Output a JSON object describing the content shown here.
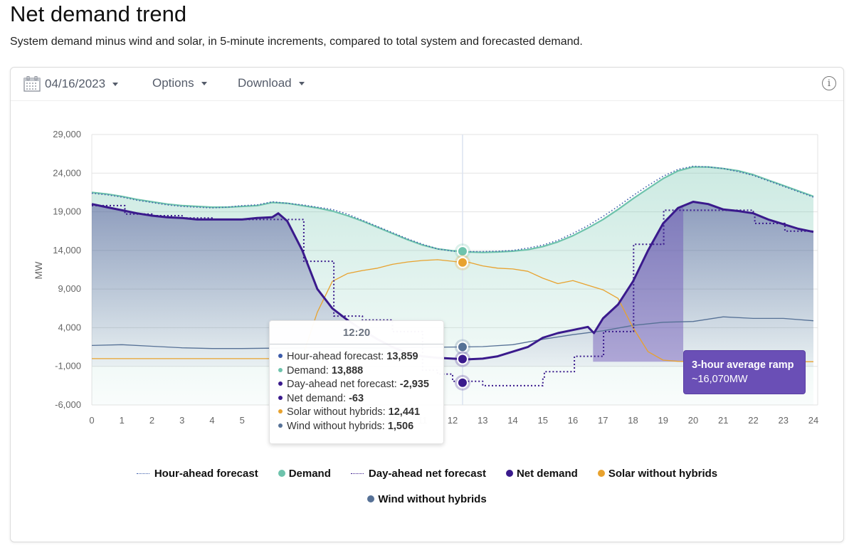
{
  "header": {
    "title": "Net demand trend",
    "subtitle": "System demand minus wind and solar, in 5-minute increments, compared to total system and forecasted demand."
  },
  "toolbar": {
    "date_label": "04/16/2023",
    "options_label": "Options",
    "download_label": "Download",
    "info_icon": "i"
  },
  "tooltip": {
    "time": "12:20",
    "rows": [
      {
        "label": "Hour-ahead forecast: ",
        "value": "13,859",
        "color": "#3b5ba9"
      },
      {
        "label": "Demand: ",
        "value": "13,888",
        "color": "#6ec3ac"
      },
      {
        "label": "Day-ahead net forecast: ",
        "value": "-2,935",
        "color": "#3a1a8c"
      },
      {
        "label": "Net demand: ",
        "value": "-63",
        "color": "#3a1a8c"
      },
      {
        "label": "Solar without hybrids: ",
        "value": "12,441",
        "color": "#e8a22e"
      },
      {
        "label": "Wind without hybrids: ",
        "value": "1,506",
        "color": "#567196"
      }
    ]
  },
  "ramp_annotation": {
    "title": "3-hour average ramp",
    "value": "~16,070MW",
    "start_hour": 16.67,
    "end_hour": 19.67
  },
  "legend": [
    {
      "label": "Hour-ahead forecast",
      "marker": "dotted-line",
      "color": "#3b5ba9"
    },
    {
      "label": "Demand",
      "marker": "dot",
      "color": "#6ec3ac"
    },
    {
      "label": "Day-ahead net forecast",
      "marker": "dotted-line",
      "color": "#3a1a8c"
    },
    {
      "label": "Net demand",
      "marker": "dot",
      "color": "#3a1a8c"
    },
    {
      "label": "Solar without hybrids",
      "marker": "dot",
      "color": "#e8a22e"
    },
    {
      "label": "Wind without hybrids",
      "marker": "dot",
      "color": "#567196"
    }
  ],
  "chart_data": {
    "type": "line",
    "title": "Net demand trend",
    "xlabel": "",
    "ylabel": "MW",
    "xlim": [
      0,
      24
    ],
    "ylim": [
      -6000,
      29000
    ],
    "x_ticks": [
      "0",
      "1",
      "2",
      "3",
      "4",
      "5",
      "6",
      "7",
      "8",
      "9",
      "10",
      "11",
      "12",
      "13",
      "14",
      "15",
      "16",
      "17",
      "18",
      "19",
      "20",
      "21",
      "22",
      "23",
      "24"
    ],
    "y_ticks": [
      "29,000",
      "24,000",
      "19,000",
      "14,000",
      "9,000",
      "4,000",
      "-1,000",
      "-6,000"
    ],
    "y_tick_values": [
      29000,
      24000,
      19000,
      14000,
      9000,
      4000,
      -1000,
      -6000
    ],
    "grid": true,
    "legend_position": "bottom",
    "crosshair_hour": 12.33,
    "series": [
      {
        "name": "Demand",
        "color": "#6ec3ac",
        "x": [
          0,
          0.5,
          1,
          1.5,
          2,
          2.5,
          3,
          3.5,
          4,
          4.5,
          5,
          5.5,
          6,
          6.5,
          7,
          7.5,
          8,
          8.5,
          9,
          9.5,
          10,
          10.5,
          11,
          11.5,
          12,
          12.33,
          12.5,
          13,
          13.5,
          14,
          14.5,
          15,
          15.5,
          16,
          16.5,
          17,
          17.5,
          18,
          18.5,
          19,
          19.5,
          20,
          20.5,
          21,
          21.5,
          22,
          22.5,
          23,
          23.5,
          24
        ],
        "y": [
          21500,
          21300,
          21000,
          20600,
          20300,
          20000,
          19800,
          19700,
          19600,
          19600,
          19700,
          19800,
          20200,
          20100,
          19800,
          19500,
          19100,
          18500,
          17800,
          17000,
          16200,
          15400,
          14700,
          14200,
          13950,
          13888,
          13800,
          13750,
          13800,
          13900,
          14100,
          14500,
          15100,
          15900,
          16900,
          18000,
          19300,
          20700,
          22000,
          23300,
          24300,
          24800,
          24800,
          24600,
          24300,
          23800,
          23100,
          22400,
          21700,
          21000
        ]
      },
      {
        "name": "Hour-ahead forecast",
        "color": "#3b5ba9",
        "x": [
          0,
          0.5,
          1,
          1.5,
          2,
          2.5,
          3,
          3.5,
          4,
          4.5,
          5,
          5.5,
          6,
          6.5,
          7,
          7.5,
          8,
          8.5,
          9,
          9.5,
          10,
          10.5,
          11,
          11.5,
          12,
          12.33,
          12.5,
          13,
          13.5,
          14,
          14.5,
          15,
          15.5,
          16,
          16.5,
          17,
          17.5,
          18,
          18.5,
          19,
          19.5,
          20,
          20.5,
          21,
          21.5,
          22,
          22.5,
          23,
          23.5,
          24
        ],
        "y": [
          21400,
          21200,
          20900,
          20500,
          20200,
          19900,
          19700,
          19600,
          19500,
          19600,
          19800,
          19900,
          20300,
          20100,
          19900,
          19600,
          19300,
          18700,
          17900,
          17100,
          16300,
          15500,
          14800,
          14200,
          13900,
          13859,
          13850,
          13850,
          13900,
          14000,
          14300,
          14700,
          15300,
          16200,
          17200,
          18400,
          19700,
          21100,
          22400,
          23600,
          24500,
          24900,
          24800,
          24600,
          24200,
          23700,
          23000,
          22300,
          21600,
          20900
        ]
      },
      {
        "name": "Net demand",
        "color": "#3a1a8c",
        "x": [
          0,
          0.5,
          1,
          1.5,
          2,
          2.5,
          3,
          3.5,
          4,
          4.5,
          5,
          5.5,
          6,
          6.2,
          6.5,
          7,
          7.5,
          8,
          8.5,
          9,
          9.5,
          10,
          10.5,
          11,
          11.5,
          12,
          12.33,
          12.5,
          13,
          13.5,
          14,
          14.5,
          15,
          15.5,
          16,
          16.5,
          16.7,
          17,
          17.5,
          18,
          18.5,
          19,
          19.5,
          20,
          20.5,
          21,
          21.5,
          22,
          22.5,
          23,
          23.5,
          24
        ],
        "y": [
          20000,
          19600,
          19200,
          18800,
          18500,
          18300,
          18200,
          18000,
          18000,
          18000,
          18000,
          18200,
          18300,
          18800,
          17800,
          14000,
          9000,
          6500,
          5000,
          3700,
          2500,
          1500,
          700,
          300,
          100,
          0,
          -63,
          -100,
          0,
          300,
          900,
          1500,
          2700,
          3300,
          3700,
          4100,
          3300,
          5200,
          7000,
          10000,
          14000,
          17500,
          19500,
          20300,
          20000,
          19300,
          19100,
          18800,
          18000,
          17400,
          16800,
          16400
        ]
      },
      {
        "name": "Day-ahead net forecast",
        "color": "#3a1a8c",
        "step": true,
        "x": [
          0,
          1,
          1.1,
          2,
          3,
          4,
          5,
          6,
          7,
          7.05,
          8,
          8.05,
          9,
          10,
          11,
          11.5,
          12,
          13,
          14,
          15,
          15.05,
          16,
          16.05,
          16.97,
          17.02,
          17.97,
          18.02,
          18.97,
          19.02,
          20,
          21,
          22,
          22.05,
          23,
          23.05,
          24
        ],
        "y": [
          19800,
          19800,
          18700,
          18500,
          18200,
          18000,
          18000,
          18000,
          18000,
          12600,
          12600,
          5500,
          5000,
          3500,
          -1500,
          -2000,
          -2935,
          -3500,
          -3500,
          -2500,
          -1700,
          -1700,
          300,
          300,
          3500,
          3500,
          14800,
          14800,
          19200,
          19200,
          19200,
          18900,
          17500,
          17500,
          16500,
          16500
        ]
      },
      {
        "name": "Solar without hybrids",
        "color": "#e8a22e",
        "x": [
          0,
          6,
          7,
          7.5,
          8,
          8.5,
          9,
          9.5,
          10,
          10.5,
          11,
          11.5,
          12,
          12.33,
          12.5,
          13,
          13.5,
          14,
          14.5,
          15,
          15.5,
          16,
          16.5,
          17,
          17.5,
          18,
          18.5,
          19,
          19.5,
          20,
          24
        ],
        "y": [
          0,
          0,
          200,
          6000,
          10000,
          11000,
          11400,
          11700,
          12200,
          12500,
          12700,
          12800,
          12600,
          12441,
          12500,
          12000,
          11700,
          11600,
          11300,
          10400,
          9700,
          10100,
          9500,
          8900,
          7800,
          4000,
          900,
          -200,
          -350,
          -400,
          -400
        ]
      },
      {
        "name": "Wind without hybrids",
        "color": "#567196",
        "x": [
          0,
          1,
          2,
          3,
          4,
          5,
          6,
          7,
          8,
          9,
          10,
          11,
          12,
          12.33,
          13,
          14,
          15,
          16,
          17,
          18,
          19,
          20,
          21,
          22,
          23,
          24
        ],
        "y": [
          1700,
          1800,
          1600,
          1400,
          1300,
          1300,
          1350,
          1400,
          1450,
          1400,
          1400,
          1450,
          1500,
          1506,
          1550,
          1800,
          2500,
          3100,
          3600,
          4300,
          4700,
          4800,
          5400,
          5200,
          5200,
          4900
        ]
      }
    ]
  }
}
